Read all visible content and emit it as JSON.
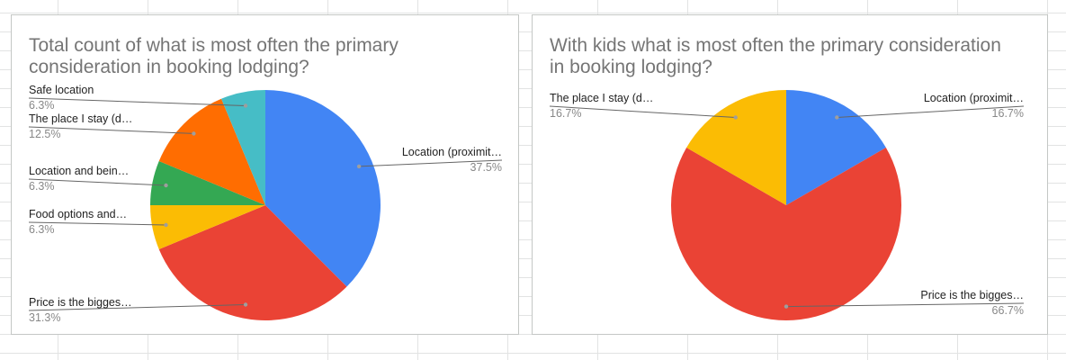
{
  "chart_data": [
    {
      "type": "pie",
      "title": "Total count of what is most often the primary consideration in booking lodging?",
      "slices": [
        {
          "label": "Location (proximit…",
          "percent_label": "37.5%",
          "value": 37.5,
          "color": "#4285f4"
        },
        {
          "label": "Price is the bigges…",
          "percent_label": "31.3%",
          "value": 31.25,
          "color": "#ea4335"
        },
        {
          "label": "Food options and…",
          "percent_label": "6.3%",
          "value": 6.25,
          "color": "#fbbc04"
        },
        {
          "label": "Location and bein…",
          "percent_label": "6.3%",
          "value": 6.25,
          "color": "#34a853"
        },
        {
          "label": "The place I stay (d…",
          "percent_label": "12.5%",
          "value": 12.5,
          "color": "#ff6d01"
        },
        {
          "label": "Safe location",
          "percent_label": "6.3%",
          "value": 6.25,
          "color": "#46bdc6"
        }
      ]
    },
    {
      "type": "pie",
      "title": "With kids what is most often the primary consideration in booking lodging?",
      "slices": [
        {
          "label": "Location (proximit…",
          "percent_label": "16.7%",
          "value": 16.67,
          "color": "#4285f4"
        },
        {
          "label": "Price is the bigges…",
          "percent_label": "66.7%",
          "value": 66.67,
          "color": "#ea4335"
        },
        {
          "label": "The place I stay (d…",
          "percent_label": "16.7%",
          "value": 16.67,
          "color": "#fbbc04"
        }
      ]
    }
  ]
}
